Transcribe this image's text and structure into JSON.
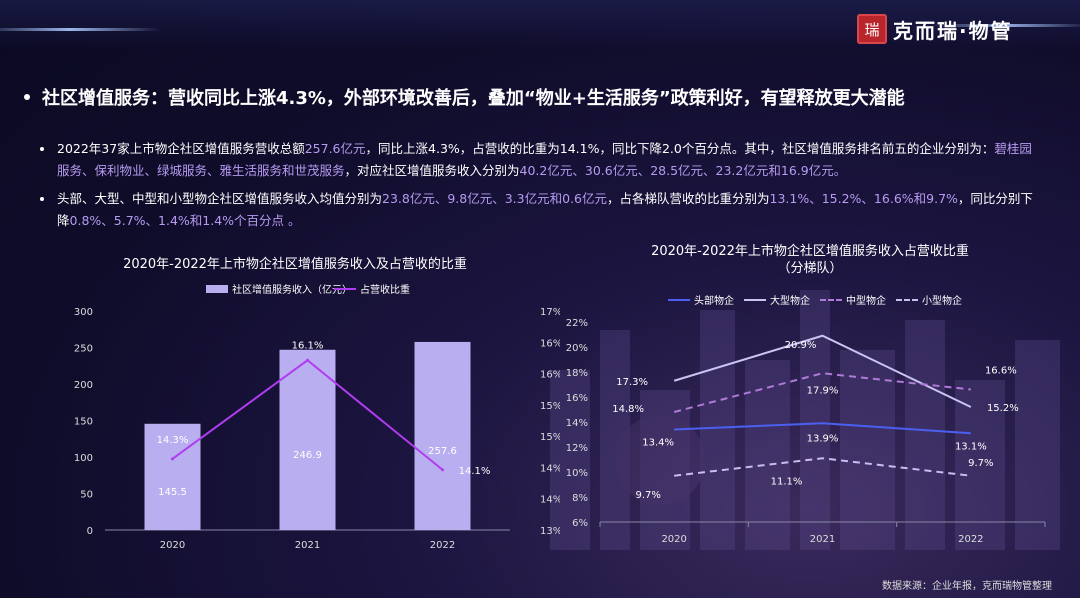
{
  "brand": {
    "seal_text": "瑞",
    "name": "克而瑞·物管"
  },
  "headline": "社区增值服务：营收同比上涨4.3%，外部环境改善后，叠加“物业+生活服务”政策利好，有望释放更大潜能",
  "paragraphs": [
    {
      "segments": [
        {
          "t": "2022年37家上市物企社区增值服务营收总额",
          "hl": false
        },
        {
          "t": "257.6亿元",
          "hl": true
        },
        {
          "t": "，同比上涨4.3%，占营收的比重为14.1%，同比下降2.0个百分点。其中，社区增值服务排名前五的企业分别为：",
          "hl": false
        },
        {
          "t": "碧桂园服务、保利物业、绿城服务、雅生活服务和世茂服务",
          "hl": true
        },
        {
          "t": "，对应社区增值服务收入分别为",
          "hl": false
        },
        {
          "t": "40.2亿元、30.6亿元、28.5亿元、23.2亿元和16.9亿元。",
          "hl": true
        }
      ]
    },
    {
      "segments": [
        {
          "t": "头部、大型、中型和小型物企社区增值服务收入均值分别为",
          "hl": false
        },
        {
          "t": "23.8亿元、9.8亿元、3.3亿元和0.6亿元",
          "hl": true
        },
        {
          "t": "，占各梯队营收的比重分别为",
          "hl": false
        },
        {
          "t": "13.1%、15.2%、16.6%和9.7%",
          "hl": true
        },
        {
          "t": "，同比分别下降",
          "hl": false
        },
        {
          "t": "0.8%、5.7%、1.4%和1.4%个百分点 。",
          "hl": true
        }
      ]
    }
  ],
  "source": "数据来源：企业年报，克而瑞物管整理",
  "colors": {
    "bar": "#b9aef0",
    "line_share": "#b03cf0",
    "head": "#4b5ff0",
    "large": "#c9c4f2",
    "medium": "#b07ad8",
    "small": "#c8bff0",
    "highlight": "#b79bf0"
  },
  "chart_data": [
    {
      "type": "bar",
      "title": "2020年-2022年上市物企社区增值服务收入及占营收的比重",
      "categories": [
        "2020",
        "2021",
        "2022"
      ],
      "series": [
        {
          "name": "社区增值服务收入（亿元）",
          "type": "bar",
          "axis": "left",
          "values": [
            145.5,
            246.9,
            257.6
          ],
          "labels": [
            "145.5",
            "246.9",
            "257.6"
          ]
        },
        {
          "name": "占营收比重",
          "type": "line",
          "axis": "right",
          "values": [
            14.3,
            16.1,
            14.1
          ],
          "labels": [
            "14.3%",
            "16.1%",
            "14.1%"
          ]
        }
      ],
      "y_left": {
        "min": 0,
        "max": 300,
        "ticks": [
          "0",
          "50",
          "100",
          "150",
          "200",
          "250",
          "300"
        ]
      },
      "y_right": {
        "min": 13,
        "max": 17,
        "ticks": [
          "13%",
          "14%",
          "14%",
          "15%",
          "15%",
          "16%",
          "16%",
          "17%"
        ]
      },
      "legend": "top"
    },
    {
      "type": "line",
      "title": "2020年-2022年上市物企社区增值服务收入占营收比重",
      "subtitle": "（分梯队）",
      "categories": [
        "2020",
        "2021",
        "2022"
      ],
      "series": [
        {
          "name": "头部物企",
          "values": [
            13.4,
            13.9,
            13.1
          ],
          "labels": [
            "13.4%",
            "13.9%",
            "13.1%"
          ],
          "dash": false
        },
        {
          "name": "大型物企",
          "values": [
            17.3,
            20.9,
            15.2
          ],
          "labels": [
            "17.3%",
            "20.9%",
            "15.2%"
          ],
          "dash": false
        },
        {
          "name": "中型物企",
          "values": [
            14.8,
            17.9,
            16.6
          ],
          "labels": [
            "14.8%",
            "17.9%",
            "16.6%"
          ],
          "dash": true
        },
        {
          "name": "小型物企",
          "values": [
            9.7,
            11.1,
            9.7
          ],
          "labels": [
            "9.7%",
            "11.1%",
            "9.7%"
          ],
          "dash": true
        }
      ],
      "ylim": [
        6,
        22
      ],
      "y_ticks": [
        "6%",
        "8%",
        "10%",
        "12%",
        "14%",
        "16%",
        "18%",
        "20%",
        "22%"
      ],
      "legend": "top"
    }
  ]
}
